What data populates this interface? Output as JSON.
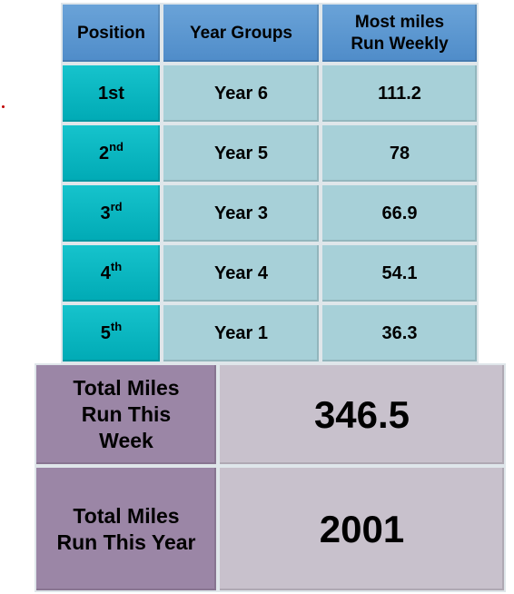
{
  "table": {
    "header": [
      [
        "Position"
      ],
      [
        "Year Groups"
      ],
      [
        "Most miles",
        "Run Weekly"
      ]
    ],
    "rows": [
      [
        {
          "main": "1st"
        },
        "Year 6",
        111.2
      ],
      [
        {
          "main": "2",
          "sup": "nd"
        },
        "Year 5",
        78
      ],
      [
        {
          "main": "3",
          "sup": "rd"
        },
        "Year 3",
        66.9
      ],
      [
        {
          "main": "4",
          "sup": "th"
        },
        "Year 4",
        54.1
      ],
      [
        {
          "main": "5",
          "sup": "th"
        },
        "Year 1",
        36.3
      ]
    ]
  },
  "totals": [
    {
      "label": [
        "Total Miles",
        "Run This",
        "Week"
      ],
      "value": 346.5
    },
    {
      "label": [
        "Total Miles",
        "Run This Year"
      ],
      "value": 2001
    }
  ]
}
